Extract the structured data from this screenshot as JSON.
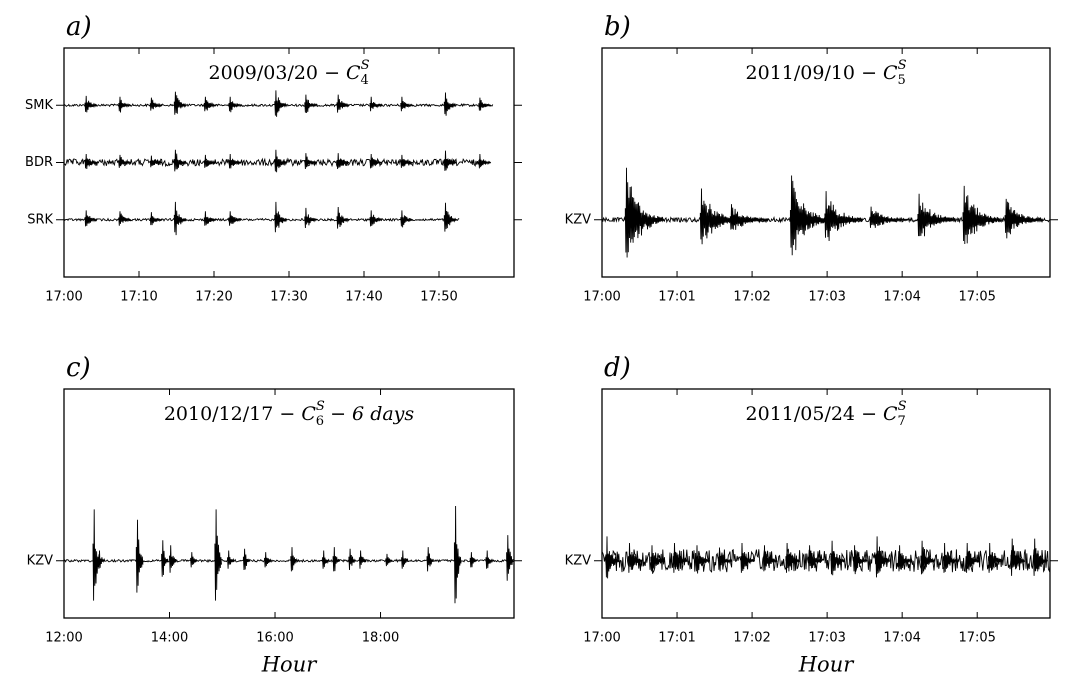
{
  "chart_data": [
    {
      "type": "line",
      "panel_label": "a)",
      "title": "2009/03/20  −  ",
      "title_symbol": "C",
      "title_sup": "S",
      "title_sub": "4",
      "xlim": [
        0,
        60
      ],
      "xticks": [
        {
          "value": 0,
          "label": "17:00"
        },
        {
          "value": 10,
          "label": "17:10"
        },
        {
          "value": 20,
          "label": "17:20"
        },
        {
          "value": 30,
          "label": "17:30"
        },
        {
          "value": 40,
          "label": "17:40"
        },
        {
          "value": 50,
          "label": "17:50"
        }
      ],
      "ylim": [
        0,
        4
      ],
      "yticks": [
        {
          "value": 3,
          "label": "SMK"
        },
        {
          "value": 2,
          "label": "BDR"
        },
        {
          "value": 1,
          "label": "SRK"
        }
      ],
      "traces": [
        {
          "x": [
            2.8,
            7.3,
            11.5,
            14.7,
            18.7,
            22.0,
            28.1,
            32.1,
            36.4,
            40.8,
            44.9,
            50.7,
            55.3
          ],
          "values": [
            0.22,
            0.2,
            0.18,
            0.32,
            0.2,
            0.2,
            0.35,
            0.25,
            0.25,
            0.2,
            0.2,
            0.3,
            0.18
          ],
          "end": 57.2,
          "noise": 0.02
        },
        {
          "x": [
            2.8,
            7.3,
            11.5,
            14.7,
            18.7,
            22.0,
            28.1,
            32.1,
            36.4,
            40.8,
            44.9,
            50.7,
            55.3
          ],
          "values": [
            0.2,
            0.18,
            0.16,
            0.3,
            0.18,
            0.2,
            0.3,
            0.22,
            0.22,
            0.2,
            0.18,
            0.28,
            0.2
          ],
          "end": 55.9,
          "noise": 0.06
        },
        {
          "x": [
            2.8,
            7.3,
            11.5,
            14.7,
            18.7,
            22.0,
            28.1,
            32.1,
            36.4,
            40.8,
            44.9,
            50.7
          ],
          "values": [
            0.22,
            0.2,
            0.18,
            0.42,
            0.2,
            0.2,
            0.42,
            0.28,
            0.3,
            0.22,
            0.22,
            0.4
          ],
          "end": 52.8,
          "noise": 0.02
        }
      ]
    },
    {
      "type": "line",
      "panel_label": "b)",
      "title": "2011/09/10  −  ",
      "title_symbol": "C",
      "title_sup": "S",
      "title_sub": "5",
      "xlim": [
        0,
        5.97
      ],
      "xticks": [
        {
          "value": 0,
          "label": "17:00"
        },
        {
          "value": 1,
          "label": "17:01"
        },
        {
          "value": 2,
          "label": "17:02"
        },
        {
          "value": 3,
          "label": "17:03"
        },
        {
          "value": 4,
          "label": "17:04"
        },
        {
          "value": 5,
          "label": "17:05"
        }
      ],
      "ylim": [
        0,
        4
      ],
      "yticks": [
        {
          "value": 1,
          "label": "KZV"
        }
      ],
      "traces": [
        {
          "x": [
            0.31,
            1.31,
            1.71,
            2.51,
            2.97,
            3.57,
            4.21,
            4.81,
            5.37
          ],
          "values": [
            1.0,
            0.6,
            0.3,
            0.85,
            0.55,
            0.25,
            0.5,
            0.65,
            0.4
          ],
          "end": 5.97,
          "noise": 0.04
        }
      ]
    },
    {
      "type": "line",
      "panel_label": "c)",
      "title": "2010/12/17  −  ",
      "title_symbol": "C",
      "title_sup": "S",
      "title_sub": "6",
      "title_suffix": " − 6 days",
      "x_label": "Hour",
      "xlim": [
        0,
        8.53
      ],
      "xticks": [
        {
          "value": 0,
          "label": "12:00"
        },
        {
          "value": 2,
          "label": "14:00"
        },
        {
          "value": 4,
          "label": "16:00"
        },
        {
          "value": 6,
          "label": "18:00"
        }
      ],
      "ylim": [
        0,
        4
      ],
      "yticks": [
        {
          "value": 1,
          "label": "KZV"
        }
      ],
      "traces": [
        {
          "x": [
            0.55,
            0.65,
            1.37,
            1.85,
            2.0,
            2.4,
            2.86,
            3.1,
            3.4,
            3.8,
            4.3,
            4.9,
            5.1,
            5.4,
            5.6,
            6.1,
            6.4,
            6.88,
            7.4,
            7.7,
            8.0,
            8.39
          ],
          "values": [
            1.5,
            0.3,
            1.2,
            0.6,
            0.45,
            0.25,
            1.5,
            0.3,
            0.35,
            0.25,
            0.4,
            0.3,
            0.4,
            0.35,
            0.3,
            0.2,
            0.3,
            0.4,
            1.6,
            0.25,
            0.3,
            0.75
          ],
          "end": 8.53,
          "noise": 0.02
        }
      ]
    },
    {
      "type": "line",
      "panel_label": "d)",
      "title": "2011/05/24  −  ",
      "title_symbol": "C",
      "title_sup": "S",
      "title_sub": "7",
      "x_label": "Hour",
      "xlim": [
        0,
        5.97
      ],
      "xticks": [
        {
          "value": 0,
          "label": "17:00"
        },
        {
          "value": 1,
          "label": "17:01"
        },
        {
          "value": 2,
          "label": "17:02"
        },
        {
          "value": 3,
          "label": "17:03"
        },
        {
          "value": 4,
          "label": "17:04"
        },
        {
          "value": 5,
          "label": "17:05"
        }
      ],
      "ylim": [
        0,
        4
      ],
      "yticks": [
        {
          "value": 1,
          "label": "KZV"
        }
      ],
      "traces": [
        {
          "x": [
            0.05,
            0.35,
            0.65,
            0.95,
            1.25,
            1.55,
            1.85,
            2.15,
            2.45,
            2.75,
            3.05,
            3.35,
            3.65,
            3.95,
            4.25,
            4.55,
            4.85,
            5.15,
            5.45,
            5.75
          ],
          "values": [
            0.55,
            0.4,
            0.35,
            0.4,
            0.35,
            0.3,
            0.4,
            0.35,
            0.4,
            0.35,
            0.45,
            0.35,
            0.55,
            0.35,
            0.45,
            0.4,
            0.4,
            0.4,
            0.5,
            0.5
          ],
          "end": 5.97,
          "noise": 0.2
        }
      ]
    }
  ]
}
